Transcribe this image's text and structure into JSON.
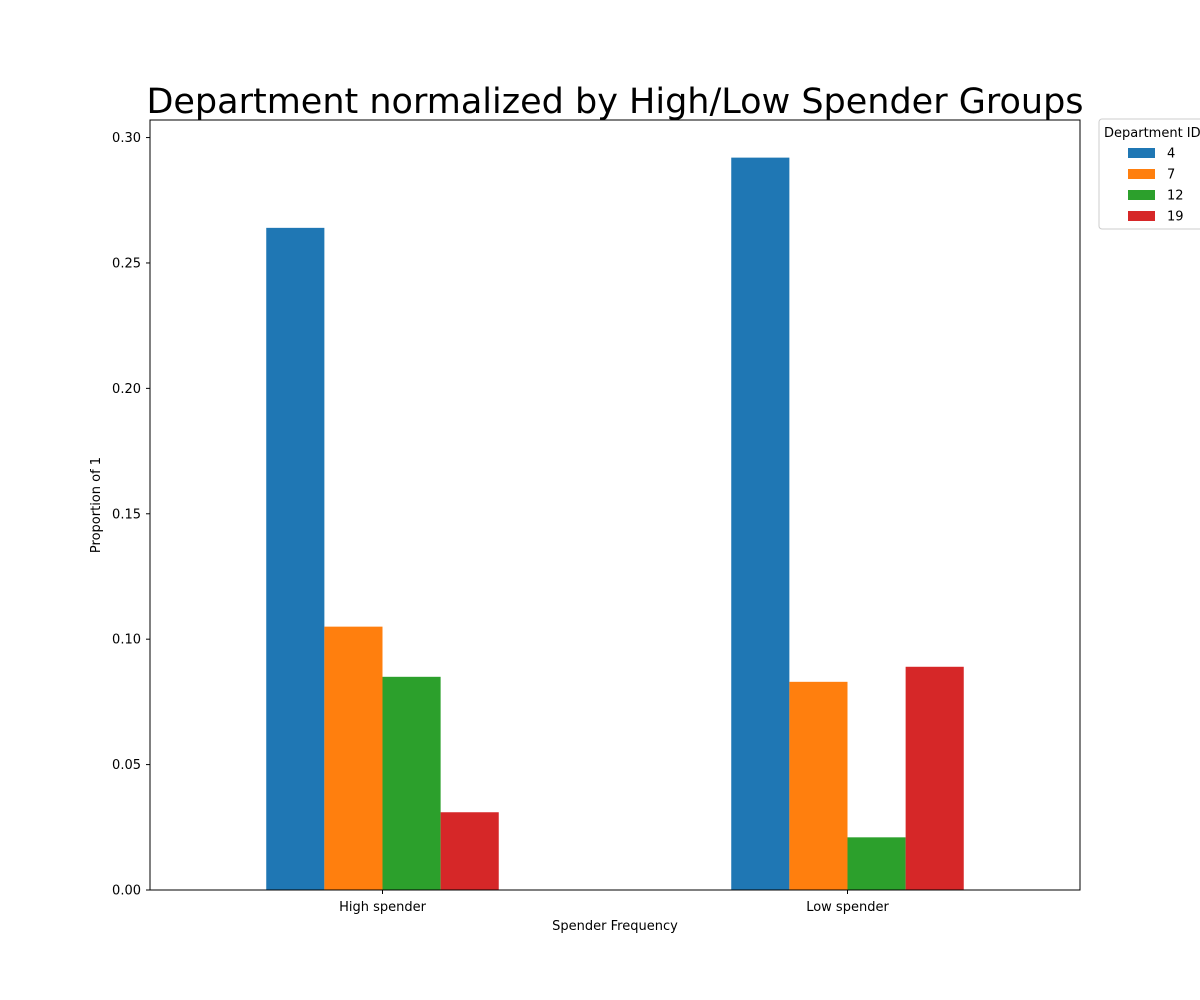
{
  "chart_data": {
    "type": "bar",
    "title": "Department normalized by High/Low Spender Groups",
    "xlabel": "Spender Frequency",
    "ylabel": "Proportion of 1",
    "categories": [
      "High spender",
      "Low spender"
    ],
    "ylim": [
      0,
      0.307
    ],
    "yticks": [
      0.0,
      0.05,
      0.1,
      0.15,
      0.2,
      0.25,
      0.3
    ],
    "ytick_labels": [
      "0.00",
      "0.05",
      "0.10",
      "0.15",
      "0.20",
      "0.25",
      "0.30"
    ],
    "grid": false,
    "legend": {
      "title": "Department ID",
      "placement": "outside top-right"
    },
    "series": [
      {
        "name": "4",
        "color": "#1f77b4",
        "values": [
          0.264,
          0.292
        ]
      },
      {
        "name": "7",
        "color": "#ff7f0e",
        "values": [
          0.105,
          0.083
        ]
      },
      {
        "name": "12",
        "color": "#2ca02c",
        "values": [
          0.085,
          0.021
        ]
      },
      {
        "name": "19",
        "color": "#d62728",
        "values": [
          0.031,
          0.089
        ]
      }
    ]
  }
}
